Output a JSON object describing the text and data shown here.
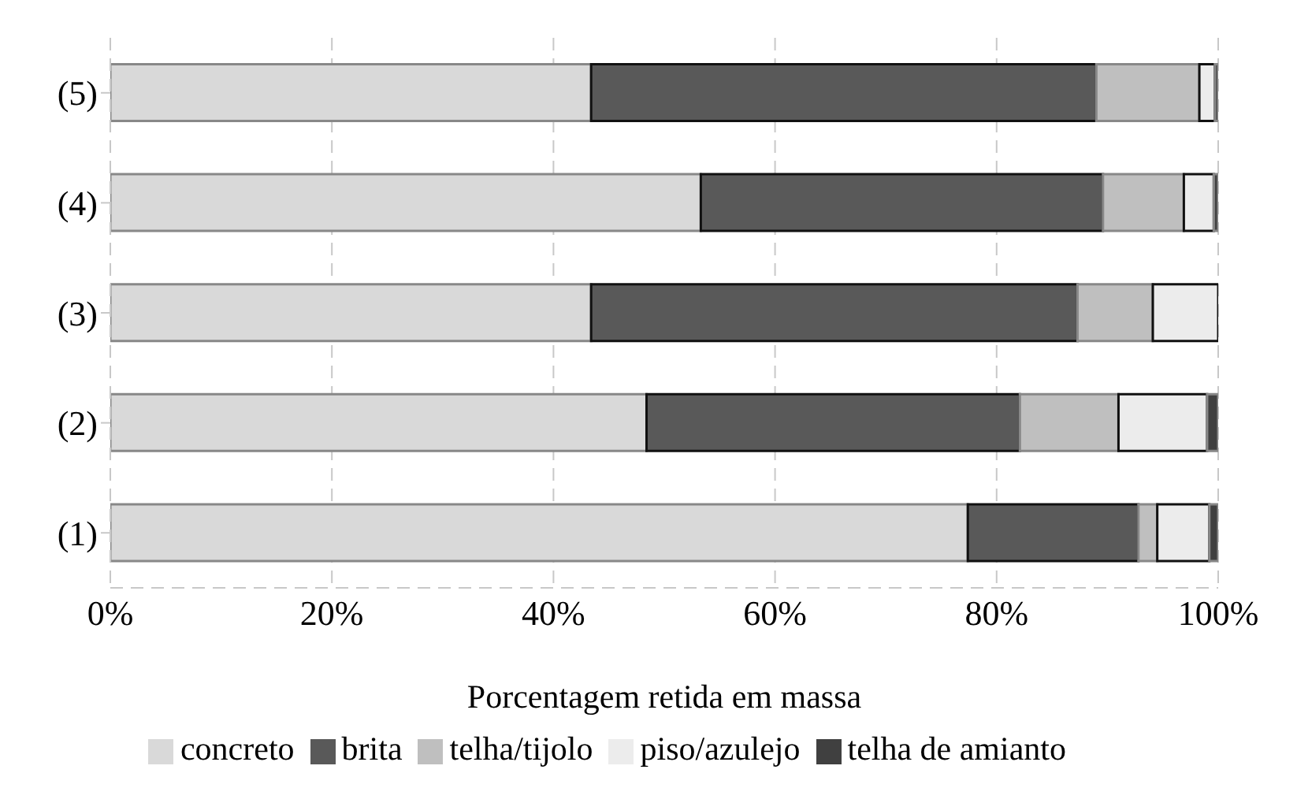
{
  "chart_data": {
    "type": "bar",
    "orientation": "horizontal",
    "stacked": true,
    "xlabel": "Porcentagem retida em massa",
    "categories": [
      "(5)",
      "(4)",
      "(3)",
      "(2)",
      "(1)"
    ],
    "series": [
      {
        "name": "concreto",
        "color": "#d9d9d9",
        "values": [
          43.4,
          53.3,
          43.4,
          48.4,
          77.4
        ]
      },
      {
        "name": "brita",
        "color": "#595959",
        "values": [
          45.6,
          36.3,
          43.9,
          33.7,
          15.4
        ]
      },
      {
        "name": "telha/tijolo",
        "color": "#bfbfbf",
        "values": [
          9.3,
          7.3,
          6.8,
          8.9,
          1.7
        ]
      },
      {
        "name": "piso/azulejo",
        "color": "#ececec",
        "values": [
          1.4,
          2.7,
          5.9,
          8,
          4.7
        ]
      },
      {
        "name": "telha de amianto",
        "color": "#404040",
        "values": [
          0.3,
          0.4,
          null,
          1,
          0.8
        ]
      }
    ],
    "xlim": [
      0,
      100
    ],
    "xticks": [
      {
        "value": 0,
        "label": "0%"
      },
      {
        "value": 20,
        "label": "20%"
      },
      {
        "value": 40,
        "label": "40%"
      },
      {
        "value": 60,
        "label": "60%"
      },
      {
        "value": 80,
        "label": "80%"
      },
      {
        "value": 100,
        "label": "100%"
      }
    ],
    "grid": "x",
    "legend": "bottom"
  }
}
